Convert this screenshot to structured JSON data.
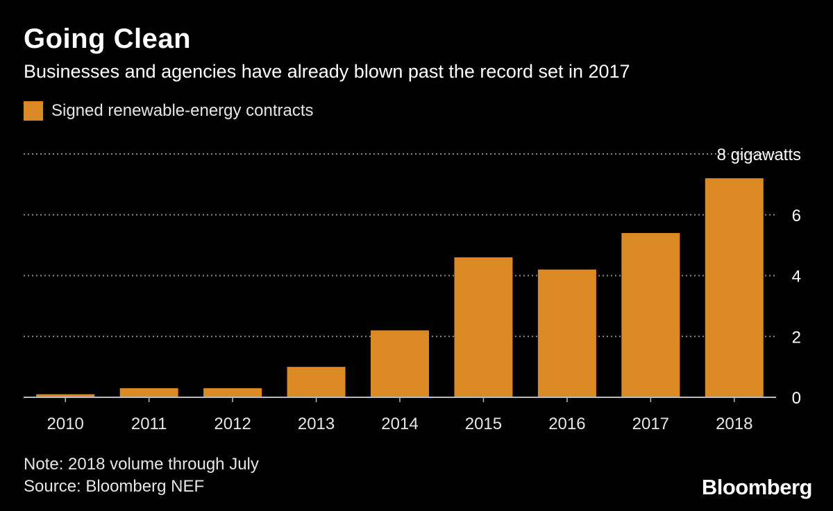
{
  "colors": {
    "background": "#000000",
    "bar": "#DB8A23",
    "grid": "#8a8a8a",
    "axis": "#bbbbbb",
    "text": "#ffffff",
    "muted_text": "#e6e6e6"
  },
  "header": {
    "title": "Going Clean",
    "subtitle": "Businesses and agencies have already blown past the record set in 2017"
  },
  "footer": {
    "note": "Note: 2018 volume through July",
    "source": "Source: Bloomberg NEF",
    "brand": "Bloomberg"
  },
  "chart_data": {
    "type": "bar",
    "title": "Going Clean",
    "subtitle": "Businesses and agencies have already blown past the record set in 2017",
    "categories": [
      "2010",
      "2011",
      "2012",
      "2013",
      "2014",
      "2015",
      "2016",
      "2017",
      "2018"
    ],
    "series": [
      {
        "name": "Signed renewable-energy contracts",
        "values": [
          0.1,
          0.3,
          0.3,
          1.0,
          2.2,
          4.6,
          4.2,
          5.4,
          7.2
        ]
      }
    ],
    "ylim": [
      0,
      8
    ],
    "yticks": [
      0,
      2,
      4,
      6,
      8
    ],
    "ytick_labels": [
      "0",
      "2",
      "4",
      "6",
      "8 gigawatts"
    ],
    "yaxis_position": "right",
    "grid": true,
    "legend": "top-left"
  }
}
